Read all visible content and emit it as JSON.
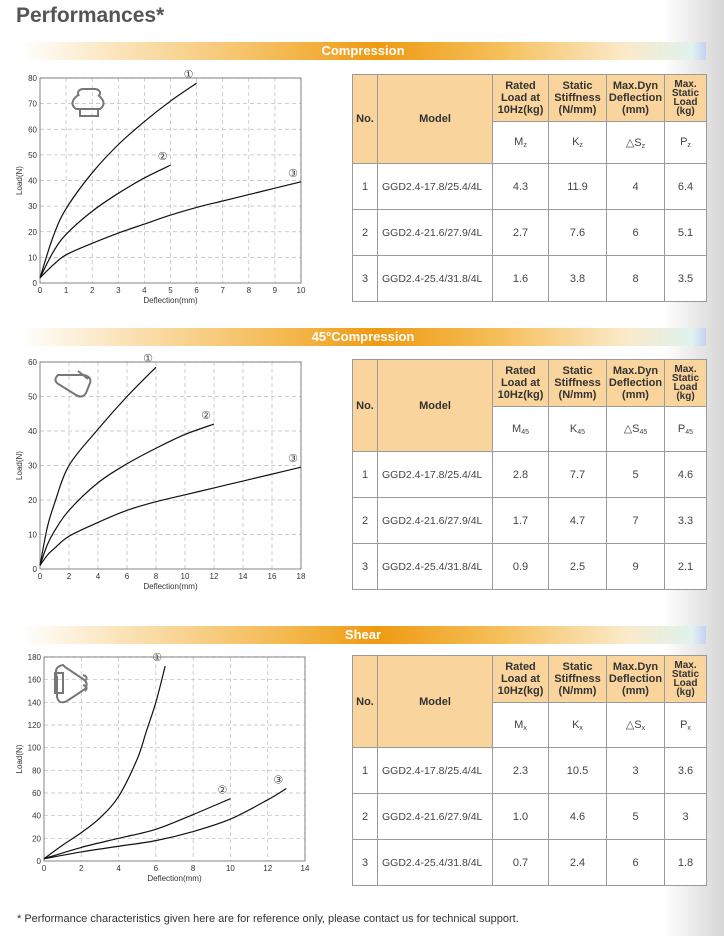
{
  "page_title": "Performances*",
  "footnote": "* Performance characteristics given here are for reference only, please contact us for technical support.",
  "colors": {
    "banner_accent": "#ef9a12",
    "table_header_bg": "#f9d49c",
    "curve": "#111111"
  },
  "table_headers": {
    "no": "No.",
    "model": "Model",
    "rated_load": "Rated Load at 10Hz(kg)",
    "stiffness": "Static Stiffness (N/mm)",
    "deflection": "Max.Dyn Deflection (mm)",
    "static_load": "Max. Static Load (kg)"
  },
  "sections": [
    {
      "banner": "Compression",
      "icon": "compression-mount-icon",
      "symbols": {
        "m": "M",
        "k": "K",
        "s": "△S",
        "p": "P",
        "sub": "z"
      },
      "rows": [
        {
          "no": "1",
          "model": "GGD2.4-17.8/25.4/4L",
          "rated": "4.3",
          "stiffness": "11.9",
          "deflection": "4",
          "max_load": "6.4"
        },
        {
          "no": "2",
          "model": "GGD2.4-21.6/27.9/4L",
          "rated": "2.7",
          "stiffness": "7.6",
          "deflection": "6",
          "max_load": "5.1"
        },
        {
          "no": "3",
          "model": "GGD2.4-25.4/31.8/4L",
          "rated": "1.6",
          "stiffness": "3.8",
          "deflection": "8",
          "max_load": "3.5"
        }
      ]
    },
    {
      "banner": "45°Compression",
      "icon": "45-compression-mount-icon",
      "symbols": {
        "m": "M",
        "k": "K",
        "s": "△S",
        "p": "P",
        "sub": "45"
      },
      "rows": [
        {
          "no": "1",
          "model": "GGD2.4-17.8/25.4/4L",
          "rated": "2.8",
          "stiffness": "7.7",
          "deflection": "5",
          "max_load": "4.6"
        },
        {
          "no": "2",
          "model": "GGD2.4-21.6/27.9/4L",
          "rated": "1.7",
          "stiffness": "4.7",
          "deflection": "7",
          "max_load": "3.3"
        },
        {
          "no": "3",
          "model": "GGD2.4-25.4/31.8/4L",
          "rated": "0.9",
          "stiffness": "2.5",
          "deflection": "9",
          "max_load": "2.1"
        }
      ]
    },
    {
      "banner": "Shear",
      "icon": "shear-mount-icon",
      "symbols": {
        "m": "M",
        "k": "K",
        "s": "△S",
        "p": "P",
        "sub": "x"
      },
      "rows": [
        {
          "no": "1",
          "model": "GGD2.4-17.8/25.4/4L",
          "rated": "2.3",
          "stiffness": "10.5",
          "deflection": "3",
          "max_load": "3.6"
        },
        {
          "no": "2",
          "model": "GGD2.4-21.6/27.9/4L",
          "rated": "1.0",
          "stiffness": "4.6",
          "deflection": "5",
          "max_load": "3"
        },
        {
          "no": "3",
          "model": "GGD2.4-25.4/31.8/4L",
          "rated": "0.7",
          "stiffness": "2.4",
          "deflection": "6",
          "max_load": "1.8"
        }
      ]
    }
  ],
  "chart_data": [
    {
      "type": "line",
      "xlabel": "Deflection(mm)",
      "ylabel": "Load(N)",
      "xlim": [
        0,
        10
      ],
      "ylim": [
        0,
        80
      ],
      "xticks": [
        0,
        1,
        2,
        3,
        4,
        5,
        6,
        7,
        8,
        9,
        10
      ],
      "yticks": [
        0,
        10,
        20,
        30,
        40,
        50,
        60,
        70,
        80
      ],
      "grid": true,
      "series": [
        {
          "name": "①",
          "x": [
            0,
            0.5,
            1,
            2,
            3,
            4,
            5,
            6
          ],
          "y": [
            2,
            18,
            29,
            43,
            54,
            63,
            71,
            78
          ]
        },
        {
          "name": "②",
          "x": [
            0,
            0.5,
            1,
            2,
            3,
            4,
            5
          ],
          "y": [
            2,
            12,
            19,
            28,
            35,
            41,
            46
          ]
        },
        {
          "name": "③",
          "x": [
            0,
            0.5,
            1,
            2,
            3,
            4,
            5,
            6,
            7,
            8,
            9,
            10
          ],
          "y": [
            2,
            7,
            11,
            15.5,
            19.5,
            23,
            26.5,
            29.5,
            32,
            34.5,
            37,
            39.5
          ]
        }
      ]
    },
    {
      "type": "line",
      "xlabel": "Deflection(mm)",
      "ylabel": "Load(N)",
      "xlim": [
        0,
        18
      ],
      "ylim": [
        0,
        60
      ],
      "xticks": [
        0,
        2,
        4,
        6,
        8,
        10,
        12,
        14,
        16,
        18
      ],
      "yticks": [
        0,
        10,
        20,
        30,
        40,
        50,
        60
      ],
      "grid": true,
      "series": [
        {
          "name": "①",
          "x": [
            0,
            0.5,
            1,
            2,
            4,
            6,
            8
          ],
          "y": [
            1,
            12,
            19,
            30,
            40.5,
            50,
            58.5
          ]
        },
        {
          "name": "②",
          "x": [
            0,
            0.5,
            1,
            2,
            4,
            6,
            8,
            10,
            12
          ],
          "y": [
            1,
            7,
            11,
            17,
            25,
            30.5,
            35,
            39,
            42
          ]
        },
        {
          "name": "③",
          "x": [
            0,
            0.5,
            1,
            2,
            4,
            6,
            8,
            10,
            12,
            14,
            16,
            18
          ],
          "y": [
            1,
            4,
            6,
            9.5,
            13.5,
            17,
            19.5,
            21.5,
            23.5,
            25.5,
            27.5,
            29.5
          ]
        }
      ]
    },
    {
      "type": "line",
      "xlabel": "Deflection(mm)",
      "ylabel": "Load(N)",
      "xlim": [
        0,
        14
      ],
      "ylim": [
        0,
        180
      ],
      "xticks": [
        0,
        2,
        4,
        6,
        8,
        10,
        12,
        14
      ],
      "yticks": [
        0,
        20,
        40,
        60,
        80,
        100,
        120,
        140,
        160,
        180
      ],
      "grid": true,
      "series": [
        {
          "name": "①",
          "x": [
            0,
            1,
            2,
            3,
            4,
            5,
            5.5,
            6,
            6.5
          ],
          "y": [
            2,
            14,
            25,
            38,
            57,
            90,
            115,
            140,
            172
          ]
        },
        {
          "name": "②",
          "x": [
            0,
            2,
            4,
            6,
            8,
            10
          ],
          "y": [
            2,
            12,
            20,
            28,
            41,
            55
          ]
        },
        {
          "name": "③",
          "x": [
            0,
            2,
            4,
            6,
            8,
            10,
            12,
            13
          ],
          "y": [
            2,
            8,
            13,
            18,
            26,
            37,
            54,
            64
          ]
        }
      ]
    }
  ]
}
